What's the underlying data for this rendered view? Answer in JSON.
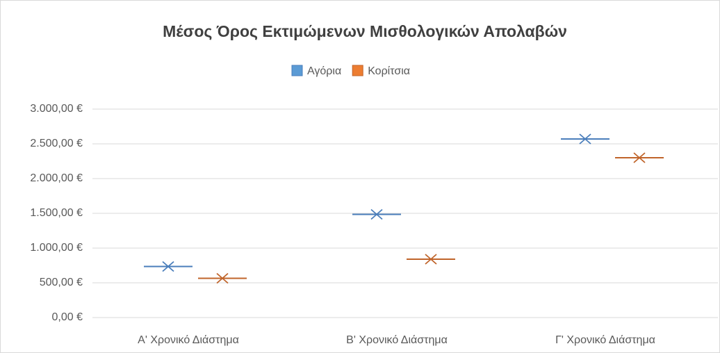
{
  "chart_data": {
    "type": "box",
    "title": "Μέσος Όρος Εκτιμώμενων Μισθολογικών Απολαβών",
    "categories": [
      "Α' Χρονικό Διάστημα",
      "Β' Χρονικό Διάστημα",
      "Γ' Χρονικό Διάστημα"
    ],
    "series": [
      {
        "name": "Αγόρια",
        "color": "#5b9bd5",
        "line_color": "#4a7ebb",
        "values": [
          735,
          1485,
          2570
        ]
      },
      {
        "name": "Κορίτσια",
        "color": "#ed7d31",
        "line_color": "#c0642a",
        "values": [
          565,
          840,
          2300
        ]
      }
    ],
    "ylim": [
      0,
      3000
    ],
    "yticks": [
      {
        "value": 0,
        "label": "0,00 €"
      },
      {
        "value": 500,
        "label": "500,00 €"
      },
      {
        "value": 1000,
        "label": "1.000,00 €"
      },
      {
        "value": 1500,
        "label": "1.500,00 €"
      },
      {
        "value": 2000,
        "label": "2.000,00 €"
      },
      {
        "value": 2500,
        "label": "2.500,00 €"
      },
      {
        "value": 3000,
        "label": "3.000,00 €"
      }
    ],
    "grid": true,
    "legend": "top"
  }
}
